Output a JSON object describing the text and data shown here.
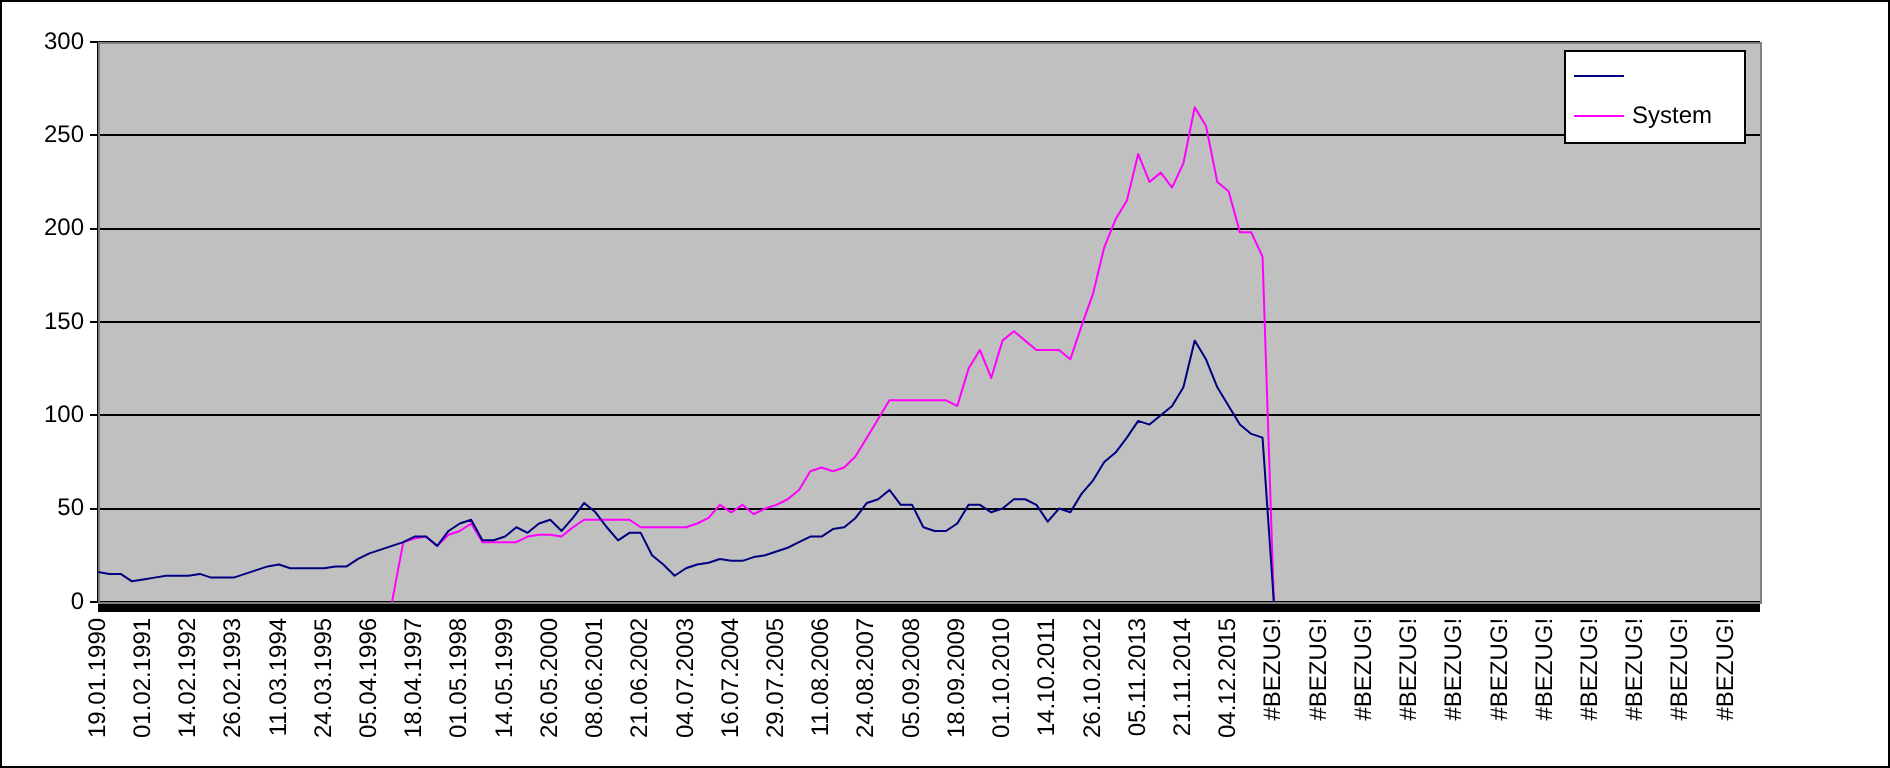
{
  "chart_data": {
    "type": "line",
    "categories": [
      "19.01.1990",
      null,
      null,
      null,
      "01.02.1991",
      null,
      null,
      null,
      "14.02.1992",
      null,
      null,
      null,
      "26.02.1993",
      null,
      null,
      null,
      "11.03.1994",
      null,
      null,
      null,
      "24.03.1995",
      null,
      null,
      null,
      "05.04.1996",
      null,
      null,
      null,
      "18.04.1997",
      null,
      null,
      null,
      "01.05.1998",
      null,
      null,
      null,
      "14.05.1999",
      null,
      null,
      null,
      "26.05.2000",
      null,
      null,
      null,
      "08.06.2001",
      null,
      null,
      null,
      "21.06.2002",
      null,
      null,
      null,
      "04.07.2003",
      null,
      null,
      null,
      "16.07.2004",
      null,
      null,
      null,
      "29.07.2005",
      null,
      null,
      null,
      "11.08.2006",
      null,
      null,
      null,
      "24.08.2007",
      null,
      null,
      null,
      "05.09.2008",
      null,
      null,
      null,
      "18.09.2009",
      null,
      null,
      null,
      "01.10.2010",
      null,
      null,
      null,
      "14.10.2011",
      null,
      null,
      null,
      "26.10.2012",
      null,
      null,
      null,
      "05.11.2013",
      null,
      null,
      null,
      "21.11.2014",
      null,
      null,
      null,
      "04.12.2015",
      null,
      null,
      null,
      "#BEZUG!",
      null,
      null,
      null,
      "#BEZUG!",
      null,
      null,
      null,
      "#BEZUG!",
      null,
      null,
      null,
      "#BEZUG!",
      null,
      null,
      null,
      "#BEZUG!",
      null,
      null,
      null,
      "#BEZUG!",
      null,
      null,
      null,
      "#BEZUG!",
      null,
      null,
      null,
      "#BEZUG!",
      null,
      null,
      null,
      "#BEZUG!",
      null,
      null,
      null,
      "#BEZUG!",
      null,
      null,
      null,
      "#BEZUG!",
      null,
      null,
      null
    ],
    "series": [
      {
        "color": "#000080",
        "values": [
          16,
          15,
          15,
          11,
          12,
          13,
          14,
          14,
          14,
          15,
          13,
          13,
          13,
          15,
          17,
          19,
          20,
          18,
          18,
          18,
          18,
          19,
          19,
          23,
          26,
          28,
          30,
          32,
          35,
          35,
          30,
          38,
          42,
          44,
          33,
          33,
          35,
          40,
          37,
          42,
          44,
          38,
          45,
          53,
          48,
          40,
          33,
          37,
          37,
          25,
          20,
          14,
          18,
          20,
          21,
          23,
          22,
          22,
          24,
          25,
          27,
          29,
          32,
          35,
          35,
          39,
          40,
          45,
          53,
          55,
          60,
          52,
          52,
          40,
          38,
          38,
          42,
          52,
          52,
          48,
          50,
          55,
          55,
          52,
          43,
          50,
          48,
          58,
          65,
          75,
          80,
          88,
          97,
          95,
          100,
          105,
          115,
          140,
          130,
          115,
          105,
          95,
          90,
          88,
          0,
          null,
          null,
          null,
          null,
          null,
          null,
          null,
          null,
          null,
          null,
          null,
          null,
          null,
          null,
          null,
          null,
          null,
          null,
          null,
          null,
          null,
          null,
          null,
          null,
          null,
          null,
          null,
          null,
          null,
          null,
          null,
          null,
          null,
          null,
          null,
          null,
          null,
          null,
          null,
          null,
          null,
          null,
          null
        ]
      },
      {
        "name": "System",
        "color": "#ff00ff",
        "values": [
          null,
          null,
          null,
          null,
          null,
          null,
          null,
          null,
          null,
          null,
          null,
          null,
          null,
          null,
          null,
          null,
          null,
          null,
          null,
          null,
          null,
          null,
          null,
          null,
          null,
          null,
          0,
          32,
          34,
          35,
          30,
          36,
          38,
          42,
          32,
          32,
          32,
          32,
          35,
          36,
          36,
          35,
          40,
          44,
          44,
          44,
          44,
          44,
          40,
          40,
          40,
          40,
          40,
          42,
          45,
          52,
          48,
          52,
          47,
          50,
          52,
          55,
          60,
          70,
          72,
          70,
          72,
          78,
          88,
          98,
          108,
          108,
          108,
          108,
          108,
          108,
          105,
          125,
          135,
          120,
          140,
          145,
          140,
          135,
          135,
          135,
          130,
          148,
          165,
          190,
          205,
          215,
          240,
          225,
          230,
          222,
          235,
          265,
          255,
          225,
          220,
          198,
          198,
          185,
          0,
          null,
          null,
          null,
          null,
          null,
          null,
          null,
          null,
          null,
          null,
          null,
          null,
          null,
          null,
          null,
          null,
          null,
          null,
          null,
          null,
          null,
          null,
          null,
          null,
          null,
          null,
          null,
          null,
          null,
          null,
          null,
          null,
          null,
          null,
          null,
          null,
          null,
          null,
          null,
          null,
          null,
          null,
          null
        ]
      }
    ],
    "ylim": [
      0,
      300
    ],
    "yticks": [
      0,
      50,
      100,
      150,
      200,
      250,
      300
    ],
    "grid": "y",
    "legend": "top right",
    "marker": "none",
    "line_style": "solid"
  }
}
